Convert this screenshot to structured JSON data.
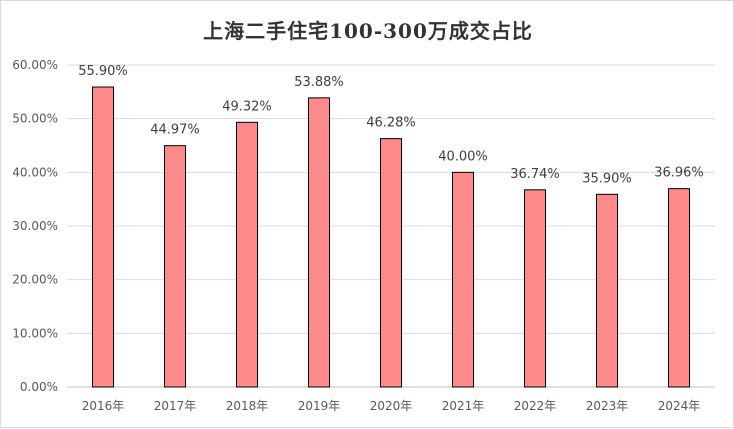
{
  "chart_data": {
    "type": "bar",
    "title": "上海二手住宅100-300万成交占比",
    "categories": [
      "2016年",
      "2017年",
      "2018年",
      "2019年",
      "2020年",
      "2021年",
      "2022年",
      "2023年",
      "2024年"
    ],
    "series": [
      {
        "values": [
          55.9,
          44.97,
          49.32,
          53.88,
          46.28,
          40.0,
          36.74,
          35.9,
          36.96
        ],
        "labels": [
          "55.90%",
          "44.97%",
          "49.32%",
          "53.88%",
          "46.28%",
          "40.00%",
          "36.74%",
          "35.90%",
          "36.96%"
        ]
      }
    ],
    "y_ticks": [
      "0.00%",
      "10.00%",
      "20.00%",
      "30.00%",
      "40.00%",
      "50.00%",
      "60.00%"
    ],
    "ylim": [
      0,
      60
    ],
    "grid": true,
    "legend": "none",
    "bar_color": "#ff8a8a",
    "bar_edge_color": "#000000"
  }
}
